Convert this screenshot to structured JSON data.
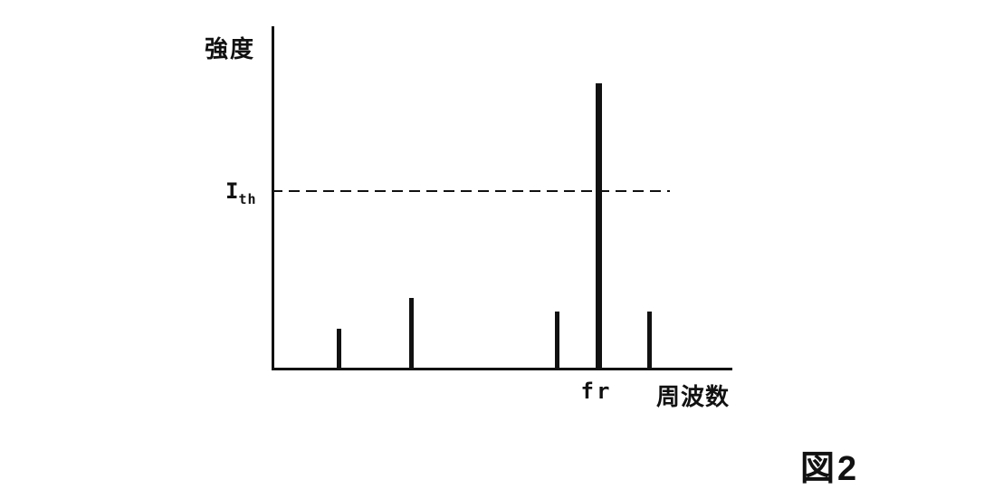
{
  "caption": "図2",
  "chart_data": {
    "type": "bar",
    "title": "",
    "ylabel": "強度",
    "xlabel": "周波数",
    "legend": null,
    "grid": false,
    "axis_note": "no numeric tick labels; spike x positions and heights normalized 0-1 relative to axis length and plot height",
    "threshold": {
      "label_main": "I",
      "label_sub": "th",
      "value": 0.52
    },
    "spikes": [
      {
        "x": 0.146,
        "h": 0.12,
        "label": ""
      },
      {
        "x": 0.305,
        "h": 0.21,
        "label": ""
      },
      {
        "x": 0.622,
        "h": 0.17,
        "label": ""
      },
      {
        "x": 0.711,
        "h": 0.835,
        "label": "fr"
      },
      {
        "x": 0.821,
        "h": 0.17,
        "label": ""
      }
    ],
    "colors": {
      "ink": "#111111",
      "background": "#ffffff"
    }
  }
}
